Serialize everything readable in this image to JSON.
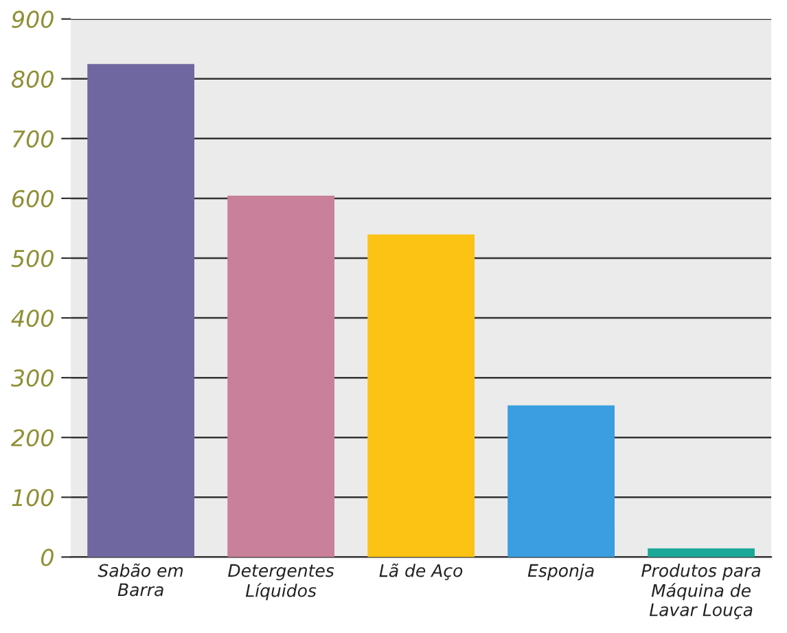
{
  "chart_data": {
    "type": "bar",
    "categories": [
      "Sabão em\nBarra",
      "Detergentes\nLíquidos",
      "Lã de Aço",
      "Esponja",
      "Produtos para\nMáquina de\nLavar Louça"
    ],
    "values": [
      823,
      603,
      538,
      252,
      13
    ],
    "colors": [
      "#6f68a0",
      "#c9809a",
      "#fcc214",
      "#3a9ee0",
      "#1aa898"
    ],
    "ylim": [
      0,
      900
    ],
    "yticks": [
      0,
      100,
      200,
      300,
      400,
      500,
      600,
      700,
      800,
      900
    ],
    "grid": "y"
  }
}
